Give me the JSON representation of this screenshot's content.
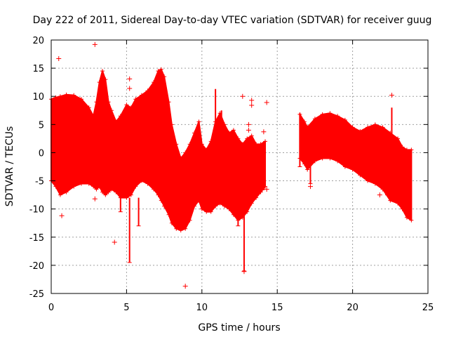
{
  "chart_data": {
    "type": "scatter",
    "title": "Day 222 of 2011, Sidereal Day-to-day VTEC variation (SDTVAR) for receiver guug",
    "xlabel": "GPS time / hours",
    "ylabel": "SDTVAR / TECUs",
    "xlim": [
      0,
      25
    ],
    "ylim": [
      -25,
      20
    ],
    "xticks": [
      0,
      5,
      10,
      15,
      20,
      25
    ],
    "yticks": [
      -25,
      -20,
      -15,
      -10,
      -5,
      0,
      5,
      10,
      15,
      20
    ],
    "grid": true,
    "marker": "+",
    "color": "#ff0000",
    "series": [
      {
        "name": "SDTVAR",
        "envelope_note": "dense band of points; upper/lower bounds sampled over time",
        "segments": [
          {
            "x": [
              0.0,
              0.3,
              0.6,
              1.0,
              1.5,
              2.0,
              2.5,
              2.8,
              3.0,
              3.2,
              3.4,
              3.6,
              3.8,
              4.0,
              4.3,
              4.6,
              5.0,
              5.3,
              5.6,
              6.0,
              6.4,
              6.8,
              7.1,
              7.3,
              7.5,
              7.8,
              8.0,
              8.3,
              8.6,
              8.9,
              9.2,
              9.5,
              9.8,
              10.0,
              10.3,
              10.6,
              10.9,
              11.2,
              11.5,
              11.8,
              12.1,
              12.4,
              12.7,
              13.0,
              13.3,
              13.6,
              13.9,
              14.2
            ],
            "upper": [
              9.5,
              9.8,
              10.0,
              10.3,
              10.2,
              9.5,
              8.0,
              6.5,
              9.0,
              12.5,
              14.5,
              13.0,
              9.0,
              7.5,
              5.5,
              6.5,
              8.5,
              8.0,
              9.5,
              10.2,
              11.0,
              12.5,
              14.5,
              14.8,
              13.5,
              9.0,
              5.0,
              1.5,
              -1.0,
              0.0,
              1.5,
              3.5,
              5.5,
              1.5,
              0.5,
              2.0,
              5.5,
              7.0,
              5.0,
              3.5,
              4.0,
              2.5,
              1.5,
              2.5,
              3.0,
              1.5,
              1.5,
              2.0
            ],
            "lower": [
              -5.0,
              -6.0,
              -7.5,
              -7.0,
              -6.0,
              -5.5,
              -5.5,
              -6.0,
              -6.5,
              -6.0,
              -7.0,
              -7.5,
              -7.0,
              -6.5,
              -7.0,
              -8.0,
              -8.0,
              -7.5,
              -6.0,
              -5.0,
              -5.5,
              -6.5,
              -7.5,
              -8.5,
              -9.5,
              -11.0,
              -12.5,
              -13.5,
              -13.8,
              -13.5,
              -12.0,
              -9.5,
              -8.5,
              -10.0,
              -10.5,
              -10.5,
              -9.5,
              -9.0,
              -9.5,
              -10.0,
              -11.0,
              -12.0,
              -11.5,
              -10.5,
              -9.0,
              -8.0,
              -7.0,
              -6.0
            ]
          },
          {
            "x": [
              16.5,
              16.8,
              17.0,
              17.5,
              18.0,
              18.5,
              19.0,
              19.5,
              20.0,
              20.5,
              21.0,
              21.5,
              22.0,
              22.5,
              23.0,
              23.3,
              23.6,
              23.9
            ],
            "upper": [
              6.8,
              5.5,
              4.5,
              6.0,
              6.8,
              7.0,
              6.5,
              5.8,
              4.5,
              3.8,
              4.5,
              5.0,
              4.5,
              3.5,
              2.5,
              1.0,
              0.5,
              0.5
            ],
            "lower": [
              -1.0,
              -2.0,
              -3.0,
              -1.5,
              -1.0,
              -1.0,
              -1.5,
              -2.5,
              -3.0,
              -4.0,
              -5.0,
              -5.5,
              -6.5,
              -8.5,
              -9.0,
              -10.0,
              -11.5,
              -12.0
            ]
          }
        ],
        "spikes": [
          {
            "x": 5.2,
            "low": -19.5,
            "high": -8.0
          },
          {
            "x": 5.8,
            "low": -13.0,
            "high": -8.0
          },
          {
            "x": 4.6,
            "low": -10.5,
            "high": -8.0
          },
          {
            "x": 12.4,
            "low": -13.0,
            "high": -11.0
          },
          {
            "x": 12.8,
            "low": -21.0,
            "high": -11.0
          },
          {
            "x": 10.9,
            "low": -9.0,
            "high": 11.3
          },
          {
            "x": 11.3,
            "low": 2.0,
            "high": 7.5
          },
          {
            "x": 14.0,
            "low": -6.5,
            "high": 1.5
          },
          {
            "x": 16.5,
            "low": -2.5,
            "high": 7.0
          },
          {
            "x": 17.2,
            "low": -5.5,
            "high": -2.0
          },
          {
            "x": 22.6,
            "low": 1.0,
            "high": 8.0
          },
          {
            "x": 22.3,
            "low": -7.5,
            "high": -4.0
          }
        ],
        "outliers": [
          {
            "x": 0.5,
            "y": 16.7
          },
          {
            "x": 0.7,
            "y": -11.2
          },
          {
            "x": 2.9,
            "y": 19.2
          },
          {
            "x": 2.9,
            "y": -8.2
          },
          {
            "x": 4.2,
            "y": -15.9
          },
          {
            "x": 5.2,
            "y": 13.1
          },
          {
            "x": 5.2,
            "y": 11.4
          },
          {
            "x": 8.9,
            "y": -23.7
          },
          {
            "x": 12.7,
            "y": 10.0
          },
          {
            "x": 13.3,
            "y": 9.3
          },
          {
            "x": 13.3,
            "y": 8.4
          },
          {
            "x": 13.1,
            "y": 5.0
          },
          {
            "x": 13.1,
            "y": 4.0
          },
          {
            "x": 14.3,
            "y": 8.9
          },
          {
            "x": 14.1,
            "y": 3.7
          },
          {
            "x": 14.3,
            "y": -6.5
          },
          {
            "x": 14.0,
            "y": -6.6
          },
          {
            "x": 22.6,
            "y": 10.2
          },
          {
            "x": 21.8,
            "y": -7.5
          },
          {
            "x": 12.8,
            "y": -21.1
          },
          {
            "x": 17.2,
            "y": -6.0
          }
        ]
      }
    ]
  }
}
